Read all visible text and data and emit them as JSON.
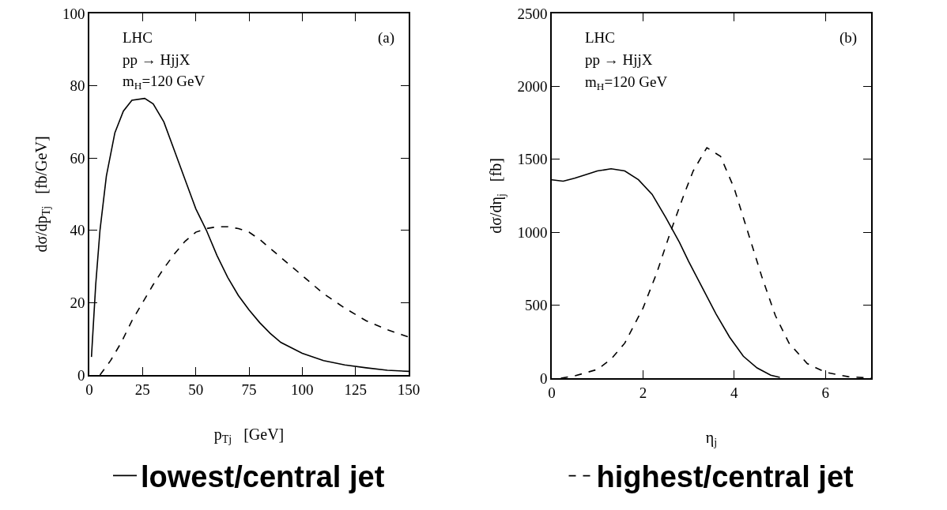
{
  "chart_data": [
    {
      "type": "line",
      "xlabel": "p$_{Tj}$   [GeV]",
      "ylabel": "dσ/dp$_{Tj}$   [fb/GeV]",
      "annotations": [
        "LHC",
        "pp → HjjX",
        "m$_{H}$=120 GeV",
        "(a)"
      ],
      "xlim": [
        0,
        150
      ],
      "xticks": [
        0,
        25,
        50,
        75,
        100,
        125,
        150
      ],
      "ylim": [
        0,
        100
      ],
      "yticks": [
        0,
        20,
        40,
        60,
        80,
        100
      ],
      "grid": false,
      "legend": "bottom",
      "marker": "none",
      "series": [
        {
          "name": "lowest/central jet",
          "color": "#000000",
          "line_style": "solid",
          "x": [
            1,
            3,
            5,
            8,
            12,
            16,
            20,
            26,
            30,
            35,
            40,
            45,
            50,
            55,
            60,
            65,
            70,
            75,
            80,
            85,
            90,
            100,
            110,
            120,
            130,
            140,
            150
          ],
          "values": [
            5,
            25,
            40,
            55,
            67,
            73,
            76,
            76.5,
            75,
            70,
            62,
            54,
            46,
            40,
            33,
            27,
            22,
            18,
            14.5,
            11.5,
            9,
            6,
            4,
            2.8,
            2,
            1.3,
            1
          ]
        },
        {
          "color": "#000000",
          "line_style": "dashed",
          "x": [
            5,
            10,
            15,
            20,
            25,
            30,
            35,
            40,
            45,
            50,
            55,
            60,
            65,
            70,
            75,
            80,
            85,
            90,
            100,
            110,
            120,
            130,
            140,
            150
          ],
          "values": [
            0,
            4,
            9,
            15,
            20,
            25,
            29.5,
            33.5,
            37,
            39.5,
            40.5,
            41,
            41,
            40.5,
            39.5,
            37.5,
            35,
            32.5,
            27.5,
            22.5,
            18.5,
            15,
            12.5,
            10.5
          ]
        }
      ]
    },
    {
      "type": "line",
      "xlabel": "η$_{j}$",
      "ylabel": "dσ/dη$_{j}$   [fb]",
      "annotations": [
        "LHC",
        "pp → HjjX",
        "m$_{H}$=120 GeV",
        "(b)"
      ],
      "xlim": [
        0,
        7
      ],
      "xticks": [
        0,
        2,
        4,
        6
      ],
      "ylim": [
        0,
        2500
      ],
      "yticks": [
        0,
        500,
        1000,
        1500,
        2000,
        2500
      ],
      "grid": false,
      "legend": "bottom",
      "marker": "none",
      "series": [
        {
          "color": "#000000",
          "line_style": "solid",
          "x": [
            0,
            0.25,
            0.5,
            0.8,
            1.0,
            1.3,
            1.6,
            1.9,
            2.2,
            2.5,
            2.8,
            3.0,
            3.3,
            3.6,
            3.9,
            4.2,
            4.5,
            4.8,
            5.0
          ],
          "values": [
            1360,
            1350,
            1370,
            1400,
            1420,
            1435,
            1420,
            1360,
            1260,
            1100,
            930,
            800,
            620,
            440,
            280,
            150,
            70,
            20,
            5
          ]
        },
        {
          "name": "highest/central jet",
          "color": "#000000",
          "line_style": "dashed",
          "x": [
            0.2,
            0.5,
            1.0,
            1.3,
            1.6,
            2.0,
            2.3,
            2.6,
            2.9,
            3.1,
            3.4,
            3.7,
            4.0,
            4.3,
            4.6,
            4.9,
            5.2,
            5.6,
            6.0,
            6.5,
            7.0
          ],
          "values": [
            0,
            15,
            60,
            130,
            240,
            480,
            720,
            1000,
            1260,
            1420,
            1580,
            1520,
            1300,
            1000,
            700,
            430,
            240,
            100,
            40,
            10,
            0
          ]
        }
      ]
    }
  ]
}
